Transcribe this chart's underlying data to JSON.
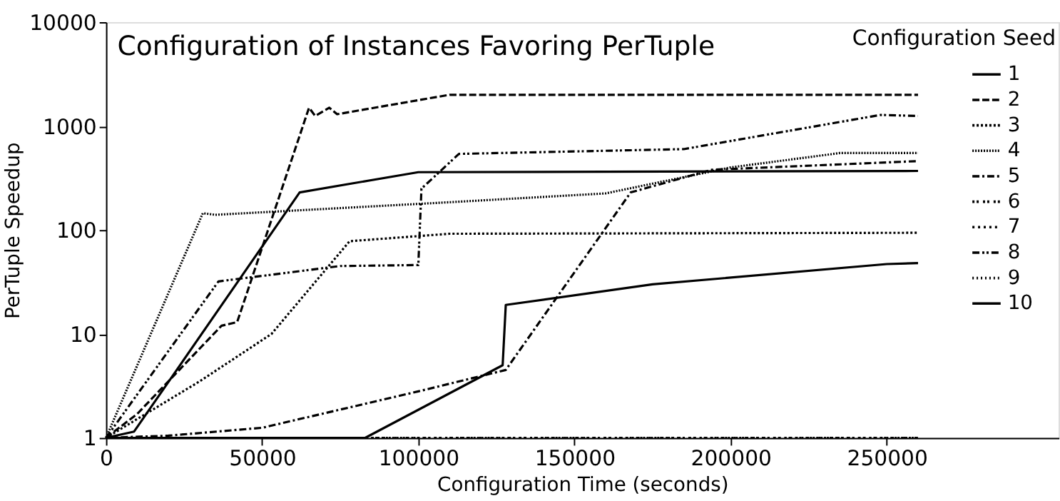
{
  "chart_data": {
    "type": "line",
    "title": "Configuration of Instances Favoring PerTuple",
    "xlabel": "Configuration Time (seconds)",
    "ylabel": "PerTuple Speedup",
    "legend_title": "Configuration Seed",
    "xlim": [
      0,
      305000
    ],
    "xticks": [
      0,
      50000,
      100000,
      150000,
      200000,
      250000
    ],
    "ylim": [
      1,
      10000
    ],
    "yticks": [
      1,
      10,
      100,
      1000,
      10000
    ],
    "log": "y",
    "grid": false,
    "legend": "top right",
    "marker": "none",
    "series": [
      {
        "name": "1",
        "color": "#000000",
        "line_style": "solid",
        "x": [
          0,
          9000,
          62000,
          100000,
          260000
        ],
        "values": [
          1,
          1.15,
          230,
          360,
          370
        ]
      },
      {
        "name": "2",
        "color": "#000000",
        "line_style": "dashed",
        "x": [
          0,
          10000,
          37000,
          42000,
          65000,
          67000,
          71500,
          74000,
          110000,
          260000
        ],
        "values": [
          1,
          1.7,
          12,
          13,
          1500,
          1250,
          1500,
          1300,
          2000,
          2000
        ]
      },
      {
        "name": "3",
        "color": "#000000",
        "line_style": "dotted",
        "x": [
          0,
          30000,
          53000,
          78000,
          110000,
          260000
        ],
        "values": [
          1,
          3.5,
          10,
          78,
          92,
          94
        ]
      },
      {
        "name": "4",
        "color": "#000000",
        "line_style": "dotted",
        "x": [
          0,
          31000,
          35000,
          110000,
          160000,
          200000,
          235000,
          260000
        ],
        "values": [
          1,
          145,
          140,
          185,
          225,
          400,
          550,
          550
        ]
      },
      {
        "name": "5",
        "color": "#000000",
        "line_style": "dashed",
        "x": [
          0,
          20000,
          50000,
          100000,
          128000,
          168000,
          194000,
          260000
        ],
        "values": [
          1,
          1.05,
          1.25,
          2.8,
          4.5,
          230,
          380,
          460
        ]
      },
      {
        "name": "6",
        "color": "#000000",
        "line_style": "dotted",
        "x": [
          0,
          260000
        ],
        "values": [
          1,
          1
        ]
      },
      {
        "name": "7",
        "color": "#000000",
        "line_style": "dotted",
        "x": [
          0,
          260000
        ],
        "values": [
          1,
          1
        ]
      },
      {
        "name": "8",
        "color": "#000000",
        "line_style": "dashed",
        "x": [
          0,
          36000,
          75000,
          100000,
          101000,
          113000,
          185000,
          248000,
          260000
        ],
        "values": [
          1,
          32,
          45,
          46,
          250,
          540,
          600,
          1280,
          1250
        ]
      },
      {
        "name": "9",
        "color": "#000000",
        "line_style": "dotted"
      },
      {
        "name": "10",
        "color": "#000000",
        "line_style": "solid",
        "x": [
          0,
          83000,
          127000,
          128000,
          175000,
          250000,
          260000
        ],
        "values": [
          1,
          1,
          5,
          19,
          30,
          47,
          48
        ]
      }
    ]
  }
}
